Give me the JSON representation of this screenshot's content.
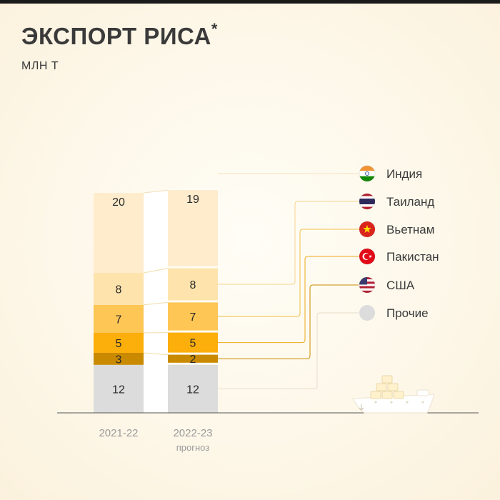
{
  "header": {
    "title": "ЭКСПОРТ РИСА",
    "title_mark": "*",
    "subtitle": "МЛН Т"
  },
  "chart_data": {
    "type": "bar",
    "stacked": true,
    "title": "ЭКСПОРТ РИСА*",
    "ylabel": "МЛН Т",
    "categories": [
      "2021-22",
      "2022-23"
    ],
    "category_notes": [
      "",
      "прогноз"
    ],
    "series": [
      {
        "name": "Прочие",
        "values": [
          12,
          12
        ],
        "color": "#dcdcdc"
      },
      {
        "name": "США",
        "values": [
          3,
          2
        ],
        "color": "#c98a00"
      },
      {
        "name": "Пакистан",
        "values": [
          5,
          5
        ],
        "color": "#fcae0a"
      },
      {
        "name": "Вьетнам",
        "values": [
          7,
          7
        ],
        "color": "#fec655"
      },
      {
        "name": "Таиланд",
        "values": [
          8,
          8
        ],
        "color": "#fee4ac"
      },
      {
        "name": "Индия",
        "values": [
          20,
          19
        ],
        "color": "#feeccc"
      }
    ],
    "legend_order": [
      "Индия",
      "Таиланд",
      "Вьетнам",
      "Пакистан",
      "США",
      "Прочие"
    ],
    "legend": "right",
    "grid": false
  },
  "legend_icons": {
    "Индия": "india-flag-icon",
    "Таиланд": "thailand-flag-icon",
    "Вьетнам": "vietnam-flag-icon",
    "Пакистан": "turkey-flag-icon",
    "США": "usa-flag-icon",
    "Прочие": "gray-circle-icon"
  },
  "colors": {
    "line_india": "#f6e1bc",
    "line_thailand": "#f5d58f",
    "line_vietnam": "#f0bf45",
    "line_pakistan": "#eea81a",
    "line_usa": "#c98a00",
    "line_other": "#e6dcc8",
    "baseline": "#555555"
  }
}
